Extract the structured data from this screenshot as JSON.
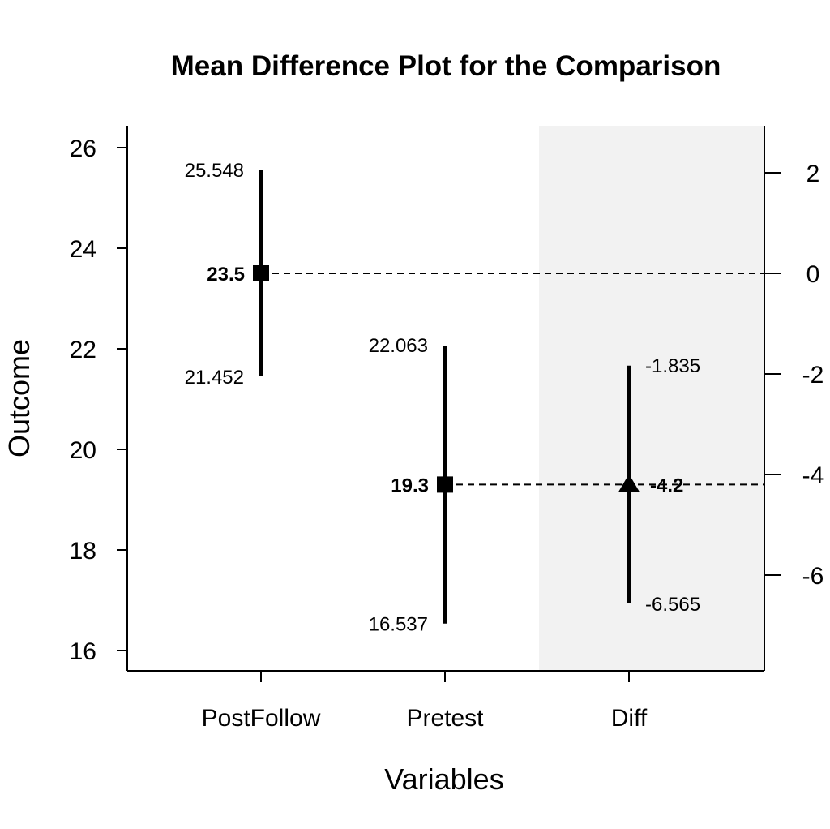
{
  "chart_data": {
    "type": "mean-difference",
    "title": "Mean Difference Plot for the Comparison",
    "xlabel": "Variables",
    "ylabel": "Outcome",
    "categories": [
      "PostFollow",
      "Pretest",
      "Diff"
    ],
    "left_axis": {
      "ylim": [
        15.6,
        26.4
      ],
      "ticks": [
        "16",
        "18",
        "20",
        "22",
        "24",
        "26"
      ]
    },
    "right_axis": {
      "reference": 0,
      "ticks": [
        "2",
        "0",
        "-2",
        "-4",
        "-6"
      ]
    },
    "groups": [
      {
        "category": "PostFollow",
        "mean": 23.5,
        "lower": 21.452,
        "upper": 25.548,
        "mean_label": "23.5",
        "lower_label": "21.452",
        "upper_label": "25.548",
        "marker": "square"
      },
      {
        "category": "Pretest",
        "mean": 19.3,
        "lower": 16.537,
        "upper": 22.063,
        "mean_label": "19.3",
        "lower_label": "16.537",
        "upper_label": "22.063",
        "marker": "square"
      }
    ],
    "difference": {
      "category": "Diff",
      "mean": -4.2,
      "lower": -6.565,
      "upper": -1.835,
      "mean_label": "-4.2",
      "lower_label": "-6.565",
      "upper_label": "-1.835",
      "marker": "triangle"
    },
    "shaded_panel": "Diff",
    "shade_color": "#f2f2f2",
    "grid": false,
    "legend": "none"
  }
}
